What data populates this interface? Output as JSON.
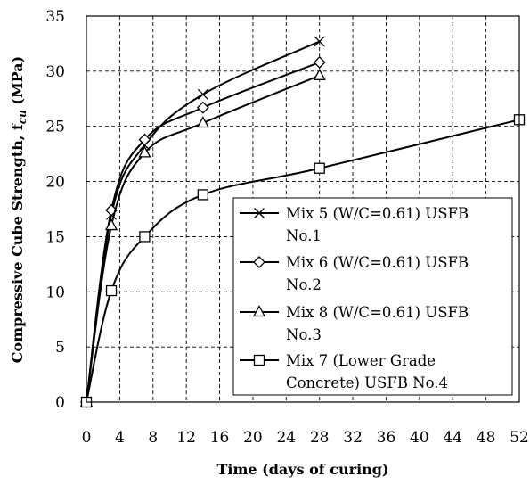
{
  "chart_data": {
    "type": "line",
    "xlabel": "Time (days of curing)",
    "ylabel": "Compressive Cube Strength, f",
    "ylabel_sub": "cu",
    "ylabel_unit": " (MPa)",
    "xlim": [
      0,
      52
    ],
    "ylim": [
      0,
      35
    ],
    "x_ticks": [
      "0",
      "4",
      "8",
      "12",
      "16",
      "20",
      "24",
      "28",
      "32",
      "36",
      "40",
      "44",
      "48",
      "52"
    ],
    "y_ticks": [
      "0",
      "5",
      "10",
      "15",
      "20",
      "25",
      "30",
      "35"
    ],
    "grid": true,
    "legend_position": "center-right",
    "series": [
      {
        "name": "Mix 5 (W/C=0.61) USFB No.1",
        "legend_lines": [
          "Mix 5 (W/C=0.61) USFB",
          "No.1"
        ],
        "marker": "x",
        "x": [
          0,
          3,
          7,
          14,
          28
        ],
        "y": [
          0,
          17.0,
          23.3,
          27.9,
          32.7
        ]
      },
      {
        "name": "Mix 6 (W/C=0.61) USFB No.2",
        "legend_lines": [
          "Mix 6 (W/C=0.61) USFB",
          "No.2"
        ],
        "marker": "diamond",
        "x": [
          0,
          3,
          7,
          14,
          28
        ],
        "y": [
          0,
          17.4,
          23.8,
          26.7,
          30.8
        ]
      },
      {
        "name": "Mix 8 (W/C=0.61) USFB No.3",
        "legend_lines": [
          "Mix 8 (W/C=0.61) USFB",
          "No.3"
        ],
        "marker": "triangle",
        "x": [
          0,
          3,
          7,
          14,
          28
        ],
        "y": [
          0,
          16.0,
          22.6,
          25.3,
          29.6
        ]
      },
      {
        "name": "Mix 7 (Lower Grade Concrete) USFB No.4",
        "legend_lines": [
          "Mix 7 (Lower Grade",
          "Concrete) USFB No.4"
        ],
        "marker": "square",
        "x": [
          0,
          3,
          7,
          14,
          28,
          52
        ],
        "y": [
          0,
          10.1,
          15.0,
          18.8,
          21.2,
          25.6
        ]
      }
    ]
  }
}
